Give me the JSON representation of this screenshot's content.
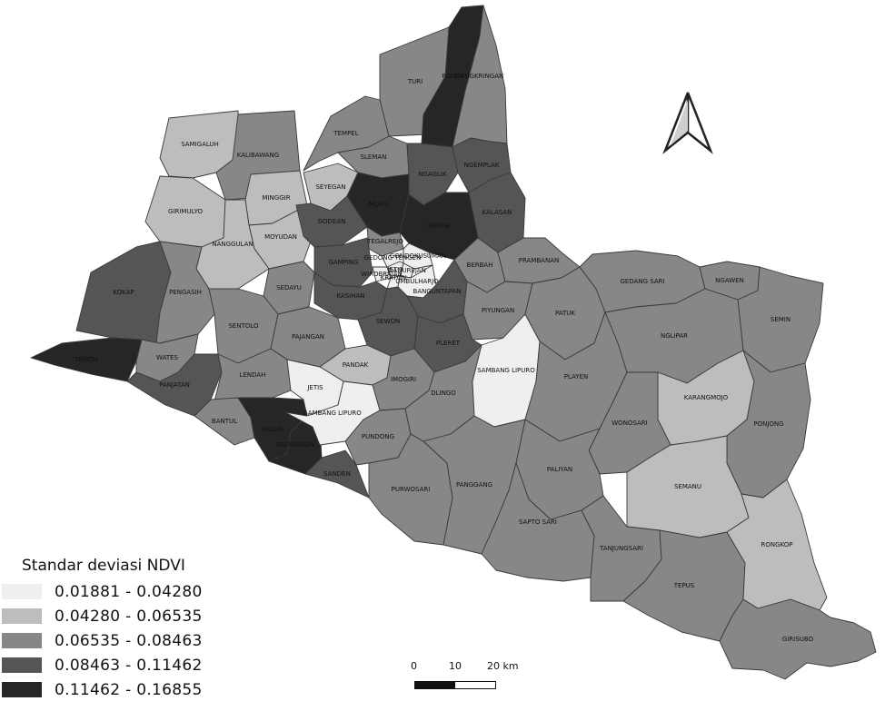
{
  "legend": {
    "title": "Standar deviasi NDVI",
    "classes": [
      {
        "label": "0.01881 - 0.04280",
        "color": "#efefef"
      },
      {
        "label": "0.04280 - 0.06535",
        "color": "#bdbdbd"
      },
      {
        "label": "0.06535 - 0.08463",
        "color": "#878787"
      },
      {
        "label": "0.08463 - 0.11462",
        "color": "#555555"
      },
      {
        "label": "0.11462 - 0.16855",
        "color": "#262626"
      }
    ]
  },
  "scale_bar": {
    "labels": [
      "0",
      "10",
      "20 km"
    ]
  },
  "north_arrow": {
    "icon": "north-arrow-icon"
  },
  "districts": [
    {
      "name": "TURI",
      "class": 2
    },
    {
      "name": "PAKEM",
      "class": 4
    },
    {
      "name": "CANGKRINGAN",
      "class": 2
    },
    {
      "name": "TEMPEL",
      "class": 2
    },
    {
      "name": "SLEMAN",
      "class": 2
    },
    {
      "name": "NGAGLIK",
      "class": 3
    },
    {
      "name": "NGEMPLAK",
      "class": 3
    },
    {
      "name": "SEYEGAN",
      "class": 1
    },
    {
      "name": "MLATI",
      "class": 4
    },
    {
      "name": "KALASAN",
      "class": 3
    },
    {
      "name": "DEPOK",
      "class": 4
    },
    {
      "name": "GODEAN",
      "class": 3
    },
    {
      "name": "TEGALREJO",
      "class": 2
    },
    {
      "name": "GONDOKUSUMAN",
      "class": 0
    },
    {
      "name": "GEDONG TENGEN",
      "class": 0
    },
    {
      "name": "JETIS",
      "class": 0
    },
    {
      "name": "DANUREJAN",
      "class": 0
    },
    {
      "name": "GAMPING",
      "class": 3
    },
    {
      "name": "WIROBRAJAN",
      "class": 0
    },
    {
      "name": "NGAMPILAN",
      "class": 0
    },
    {
      "name": "KRATON",
      "class": 0
    },
    {
      "name": "PAKUALAMAN",
      "class": 0
    },
    {
      "name": "GONDOMANAN",
      "class": 0
    },
    {
      "name": "MERGANGSAN",
      "class": 0
    },
    {
      "name": "MANTRIJERON",
      "class": 0
    },
    {
      "name": "UMBULHARJO",
      "class": 0
    },
    {
      "name": "KOTAGEDE",
      "class": 0
    },
    {
      "name": "BERBAH",
      "class": 2
    },
    {
      "name": "PRAMBANAN",
      "class": 2
    },
    {
      "name": "KASIHAN",
      "class": 3
    },
    {
      "name": "BANGUNTAPAN",
      "class": 3
    },
    {
      "name": "SEWON",
      "class": 3
    },
    {
      "name": "PIYUNGAN",
      "class": 2
    },
    {
      "name": "PLERET",
      "class": 3
    },
    {
      "name": "SAMIGALUH",
      "class": 1
    },
    {
      "name": "KALIBAWANG",
      "class": 2
    },
    {
      "name": "MINGGIR",
      "class": 1
    },
    {
      "name": "GIRIMULYO",
      "class": 1
    },
    {
      "name": "MOYUDAN",
      "class": 1
    },
    {
      "name": "NANGGULAN",
      "class": 1
    },
    {
      "name": "KOKAP",
      "class": 3
    },
    {
      "name": "PENGASIH",
      "class": 2
    },
    {
      "name": "SEDAYU",
      "class": 2
    },
    {
      "name": "SENTOLO",
      "class": 2
    },
    {
      "name": "PAJANGAN",
      "class": 2
    },
    {
      "name": "TEMON",
      "class": 4
    },
    {
      "name": "WATES",
      "class": 2
    },
    {
      "name": "PANJATAN",
      "class": 3
    },
    {
      "name": "LENDAH",
      "class": 2
    },
    {
      "name": "BANTUL",
      "class": 2
    },
    {
      "name": "PANDAK",
      "class": 1
    },
    {
      "name": "JETIS",
      "class": 0
    },
    {
      "name": "IMOGIRI",
      "class": 2
    },
    {
      "name": "DLINGO",
      "class": 2
    },
    {
      "name": "SAMBANG LIPURO",
      "class": 0
    },
    {
      "name": "GALUR",
      "class": 4
    },
    {
      "name": "SRANDAKAN",
      "class": 4
    },
    {
      "name": "SANDEN",
      "class": 3
    },
    {
      "name": "KRETEK",
      "class": 4
    },
    {
      "name": "PUNDONG",
      "class": 2
    },
    {
      "name": "PATUK",
      "class": 2
    },
    {
      "name": "GEDANG SARI",
      "class": 2
    },
    {
      "name": "NGAWEN",
      "class": 2
    },
    {
      "name": "SEMIN",
      "class": 2
    },
    {
      "name": "NGLIPAR",
      "class": 2
    },
    {
      "name": "PLAYEN",
      "class": 2
    },
    {
      "name": "KARANGMOJO",
      "class": 1
    },
    {
      "name": "PONJONG",
      "class": 2
    },
    {
      "name": "WONOSARI",
      "class": 2
    },
    {
      "name": "SEMANU",
      "class": 1
    },
    {
      "name": "PALIYAN",
      "class": 2
    },
    {
      "name": "PURWOSARI",
      "class": 2
    },
    {
      "name": "PANGGANG",
      "class": 2
    },
    {
      "name": "SAPTO SARI",
      "class": 2
    },
    {
      "name": "TANJUNGSARI",
      "class": 2
    },
    {
      "name": "TEPUS",
      "class": 2
    },
    {
      "name": "RONGKOP",
      "class": 1
    },
    {
      "name": "GIRISUBO",
      "class": 2
    }
  ]
}
